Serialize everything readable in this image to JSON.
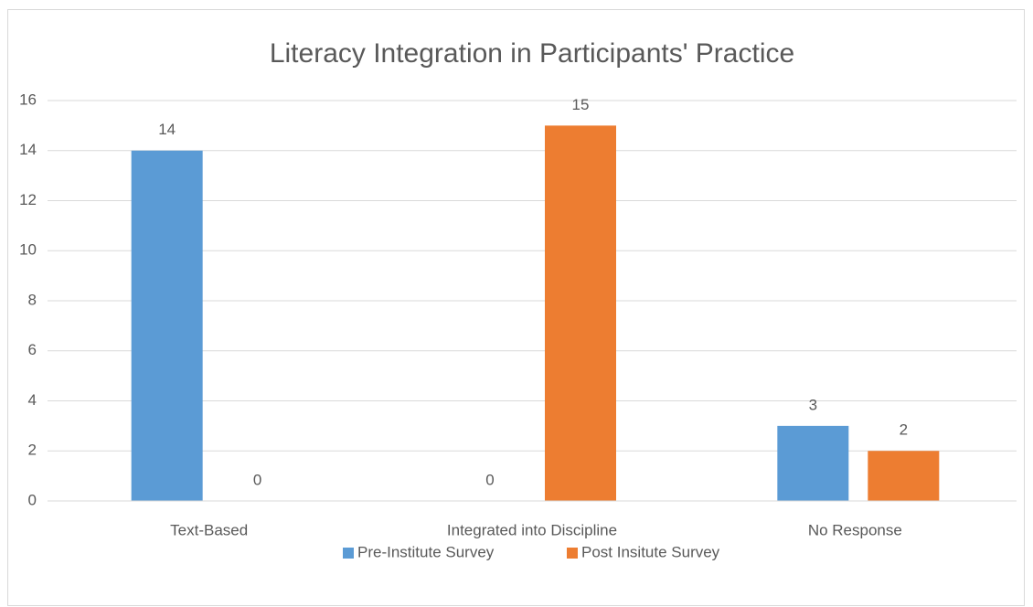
{
  "chart_data": {
    "type": "bar",
    "title": "Literacy Integration in Participants' Practice",
    "categories": [
      "Text-Based",
      "Integrated into Discipline",
      "No Response"
    ],
    "series": [
      {
        "name": "Pre-Institute Survey",
        "color": "#5b9bd5",
        "values": [
          14,
          0,
          3
        ]
      },
      {
        "name": "Post Insitute Survey",
        "color": "#ed7d31",
        "values": [
          0,
          15,
          2
        ]
      }
    ],
    "ylim": [
      0,
      16
    ],
    "yticks": [
      0,
      2,
      4,
      6,
      8,
      10,
      12,
      14,
      16
    ],
    "grid": true,
    "legend": "bottom"
  }
}
